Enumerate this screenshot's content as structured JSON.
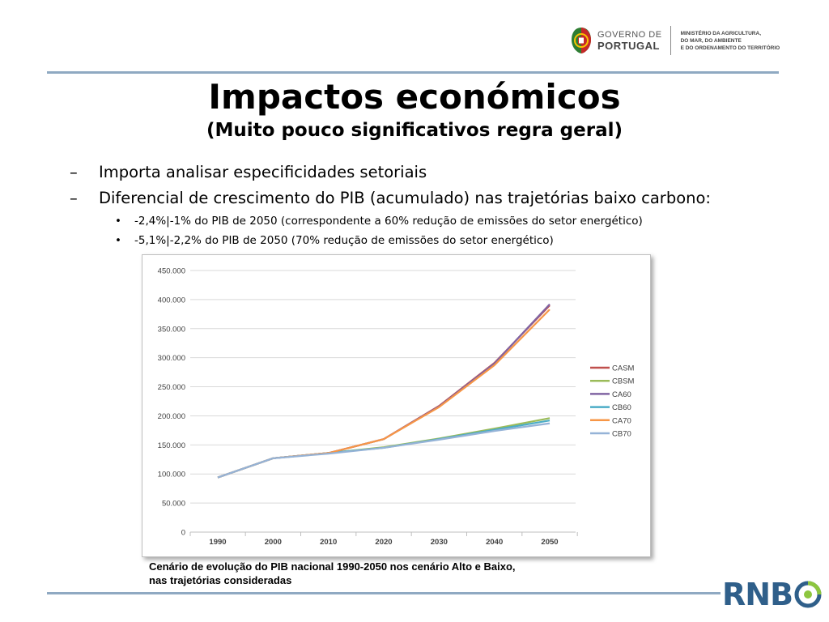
{
  "header": {
    "gov_line1": "GOVERNO DE",
    "gov_line2": "PORTUGAL",
    "ministry_lines": [
      "MINISTÉRIO DA AGRICULTURA,",
      "DO MAR, DO AMBIENTE",
      "E DO ORDENAMENTO DO TERRITÓRIO"
    ],
    "emblem_icon": "portugal-coat-of-arms-icon"
  },
  "slide": {
    "title": "Impactos económicos",
    "subtitle": "(Muito pouco significativos regra geral)",
    "bullets": [
      {
        "marker": "–",
        "text": "Importa analisar especificidades setoriais"
      },
      {
        "marker": "–",
        "text": "Diferencial de crescimento do PIB (acumulado) nas trajetórias baixo carbono:"
      }
    ],
    "sub_bullets": [
      {
        "marker": "•",
        "text": "-2,4%|-1% do PIB de 2050 (correspondente a 60% redução de emissões do setor energético)"
      },
      {
        "marker": "•",
        "text": "-5,1%|-2,2% do PIB de 2050 (70% redução de emissões do setor energético)"
      }
    ],
    "caption_line1": "Cenário de evolução do PIB nacional 1990-2050 nos cenário Alto e Baixo,",
    "caption_line2": "nas trajetórias consideradas"
  },
  "footer": {
    "logo_text": "RNB",
    "logo_icon": "rnbc-o-swirl-icon"
  },
  "colors": {
    "rule": "#8fa9c2",
    "grid": "#d9d9d9",
    "axis_text": "#404040"
  },
  "chart_data": {
    "type": "line",
    "title": "",
    "xlabel": "",
    "ylabel": "",
    "x": [
      "1990",
      "2000",
      "2010",
      "2020",
      "2030",
      "2040",
      "2050"
    ],
    "ylim": [
      0,
      450000
    ],
    "yticks": [
      0,
      50000,
      100000,
      150000,
      200000,
      250000,
      300000,
      350000,
      400000,
      450000
    ],
    "ytick_labels": [
      "0",
      "50.000",
      "100.000",
      "150.000",
      "200.000",
      "250.000",
      "300.000",
      "350.000",
      "400.000",
      "450.000"
    ],
    "grid": true,
    "legend": "right",
    "series": [
      {
        "name": "CASM",
        "color": "#c0504d",
        "values": [
          94000,
          127000,
          136000,
          160000,
          217000,
          291000,
          390000
        ]
      },
      {
        "name": "CBSM",
        "color": "#9bbb59",
        "values": [
          94000,
          127000,
          136000,
          146000,
          161000,
          178000,
          196000
        ]
      },
      {
        "name": "CA60",
        "color": "#8064a2",
        "values": [
          94000,
          127000,
          136000,
          160000,
          216000,
          290000,
          392000
        ]
      },
      {
        "name": "CB60",
        "color": "#4bacc6",
        "values": [
          94000,
          127000,
          136000,
          145000,
          160000,
          176000,
          192000
        ]
      },
      {
        "name": "CA70",
        "color": "#f79646",
        "values": [
          94000,
          127000,
          136000,
          160000,
          215000,
          287000,
          383000
        ]
      },
      {
        "name": "CB70",
        "color": "#95b3d7",
        "values": [
          94000,
          127000,
          135000,
          145000,
          159000,
          174000,
          187000
        ]
      }
    ]
  }
}
